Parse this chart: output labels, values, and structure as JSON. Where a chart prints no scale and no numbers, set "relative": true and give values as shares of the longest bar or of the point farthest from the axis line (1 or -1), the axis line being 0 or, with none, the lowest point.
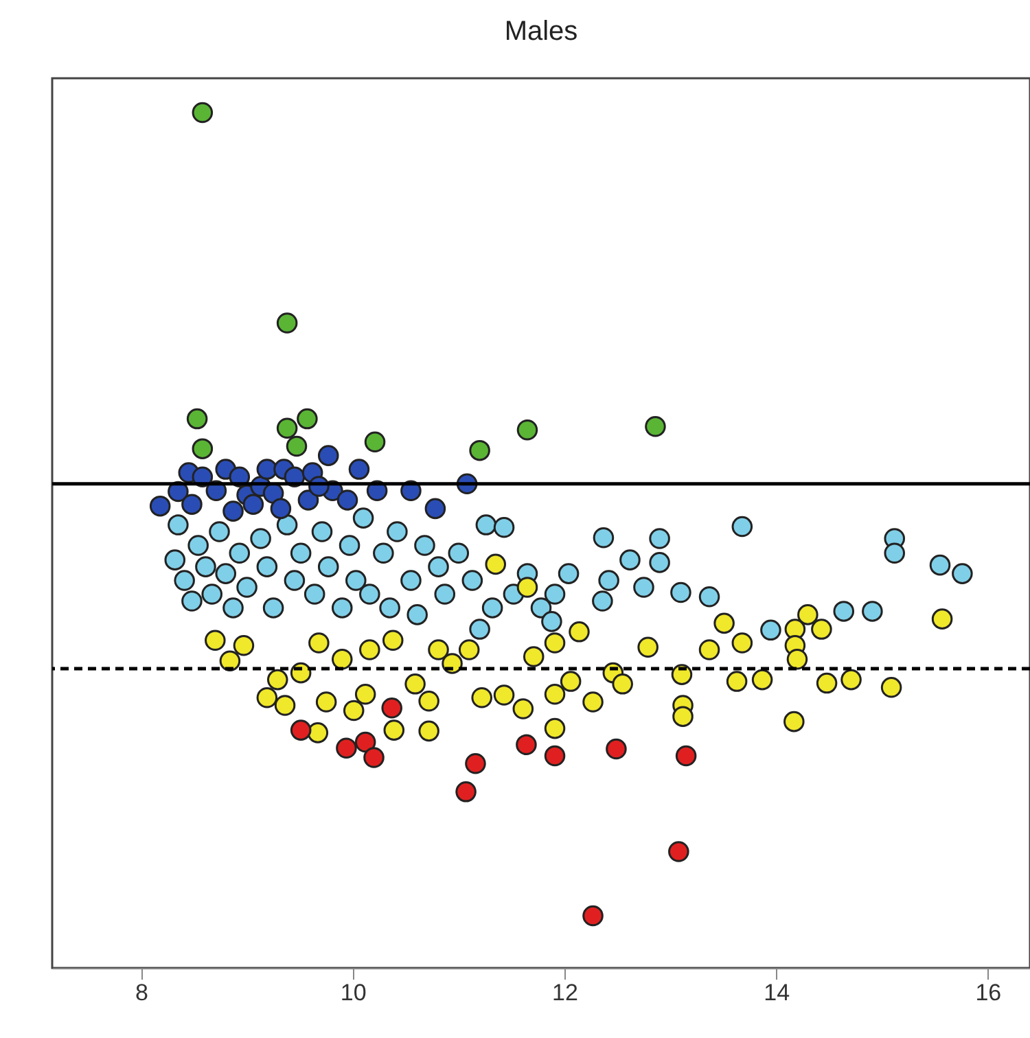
{
  "chart_data": {
    "type": "scatter",
    "title": "Males",
    "relative": true,
    "marker": "circle",
    "grid": false,
    "legend": false,
    "tick_labels": "x",
    "xlim": [
      7.16,
      16.4
    ],
    "xticks": [
      8,
      10,
      12,
      14,
      16
    ],
    "ref_lines": [
      {
        "axis": "y",
        "value": 0.566,
        "line_style": "solid",
        "color": "#000000"
      },
      {
        "axis": "y",
        "value": 0.35,
        "line_style": "dashed",
        "color": "#000000"
      }
    ],
    "series": [
      {
        "color": "#80cfe8",
        "x": [
          8.35,
          8.32,
          8.41,
          8.48,
          8.54,
          8.61,
          8.67,
          8.74,
          8.8,
          8.87,
          8.93,
          9.0,
          9.13,
          9.19,
          9.25,
          9.38,
          9.45,
          9.51,
          9.64,
          9.71,
          9.77,
          9.9,
          9.97,
          10.03,
          10.1,
          10.16,
          10.29,
          10.35,
          10.42,
          10.55,
          10.61,
          10.68,
          10.81,
          10.87,
          11.0,
          11.13,
          11.26,
          11.43,
          11.32,
          11.52,
          11.65,
          11.78,
          11.91,
          12.04,
          12.37,
          12.42,
          12.62,
          12.75,
          12.9,
          12.9,
          13.1,
          13.37,
          13.68,
          13.95,
          14.64,
          14.91,
          15.12,
          15.12,
          15.55,
          15.76,
          12.36,
          11.88,
          11.2
        ],
        "values": [
          0.518,
          0.477,
          0.453,
          0.429,
          0.494,
          0.469,
          0.437,
          0.51,
          0.461,
          0.421,
          0.485,
          0.445,
          0.502,
          0.469,
          0.421,
          0.518,
          0.453,
          0.485,
          0.437,
          0.51,
          0.469,
          0.421,
          0.494,
          0.453,
          0.526,
          0.437,
          0.485,
          0.421,
          0.51,
          0.453,
          0.413,
          0.494,
          0.469,
          0.437,
          0.485,
          0.453,
          0.518,
          0.515,
          0.421,
          0.437,
          0.461,
          0.421,
          0.437,
          0.461,
          0.503,
          0.453,
          0.477,
          0.445,
          0.502,
          0.474,
          0.439,
          0.434,
          0.516,
          0.395,
          0.417,
          0.417,
          0.502,
          0.485,
          0.471,
          0.461,
          0.429,
          0.405,
          0.396
        ]
      },
      {
        "color": "#f0e82a",
        "x": [
          8.7,
          8.84,
          8.97,
          9.19,
          9.29,
          9.36,
          9.67,
          9.68,
          9.75,
          9.9,
          10.01,
          10.12,
          10.38,
          10.39,
          10.59,
          10.72,
          10.72,
          9.51,
          11.1,
          11.22,
          11.35,
          11.43,
          11.65,
          11.61,
          11.71,
          11.91,
          12.06,
          11.91,
          11.91,
          12.14,
          12.27,
          12.46,
          12.79,
          13.11,
          13.12,
          13.12,
          13.37,
          13.51,
          13.68,
          13.63,
          13.87,
          14.18,
          14.18,
          14.2,
          14.3,
          14.43,
          14.48,
          14.71,
          15.09,
          14.17,
          15.57,
          10.16,
          10.81,
          10.94,
          12.55
        ],
        "values": [
          0.383,
          0.359,
          0.377,
          0.316,
          0.337,
          0.307,
          0.275,
          0.38,
          0.311,
          0.361,
          0.301,
          0.32,
          0.383,
          0.278,
          0.332,
          0.277,
          0.312,
          0.345,
          0.372,
          0.316,
          0.472,
          0.319,
          0.445,
          0.303,
          0.364,
          0.38,
          0.335,
          0.32,
          0.28,
          0.393,
          0.311,
          0.345,
          0.375,
          0.343,
          0.307,
          0.294,
          0.372,
          0.403,
          0.38,
          0.335,
          0.337,
          0.396,
          0.377,
          0.361,
          0.413,
          0.396,
          0.333,
          0.337,
          0.328,
          0.288,
          0.408,
          0.372,
          0.372,
          0.356,
          0.332
        ]
      },
      {
        "color": "#2a4db5",
        "x": [
          8.18,
          8.35,
          8.45,
          8.58,
          8.71,
          8.8,
          8.93,
          9.0,
          9.13,
          9.19,
          9.25,
          9.35,
          9.45,
          9.62,
          9.77,
          9.81,
          9.95,
          10.23,
          10.55,
          10.78,
          11.08,
          8.48,
          8.87,
          9.06,
          9.32,
          9.58,
          9.68,
          10.06
        ],
        "values": [
          0.54,
          0.557,
          0.579,
          0.574,
          0.558,
          0.583,
          0.574,
          0.553,
          0.563,
          0.583,
          0.555,
          0.583,
          0.574,
          0.579,
          0.599,
          0.558,
          0.547,
          0.558,
          0.558,
          0.537,
          0.566,
          0.542,
          0.534,
          0.542,
          0.537,
          0.547,
          0.563,
          0.583
        ]
      },
      {
        "color": "#5ab535",
        "x": [
          8.58,
          9.38,
          8.53,
          8.58,
          9.38,
          9.57,
          9.47,
          10.21,
          11.2,
          11.65,
          12.86
        ],
        "values": [
          1.0,
          0.754,
          0.642,
          0.607,
          0.631,
          0.642,
          0.61,
          0.615,
          0.605,
          0.629,
          0.633
        ]
      },
      {
        "color": "#e02020",
        "x": [
          9.51,
          9.94,
          10.12,
          10.2,
          10.37,
          11.16,
          11.07,
          11.64,
          11.91,
          12.49,
          13.15,
          13.08,
          12.27
        ],
        "values": [
          0.278,
          0.257,
          0.264,
          0.246,
          0.304,
          0.239,
          0.206,
          0.261,
          0.248,
          0.256,
          0.248,
          0.136,
          0.061
        ]
      }
    ]
  }
}
